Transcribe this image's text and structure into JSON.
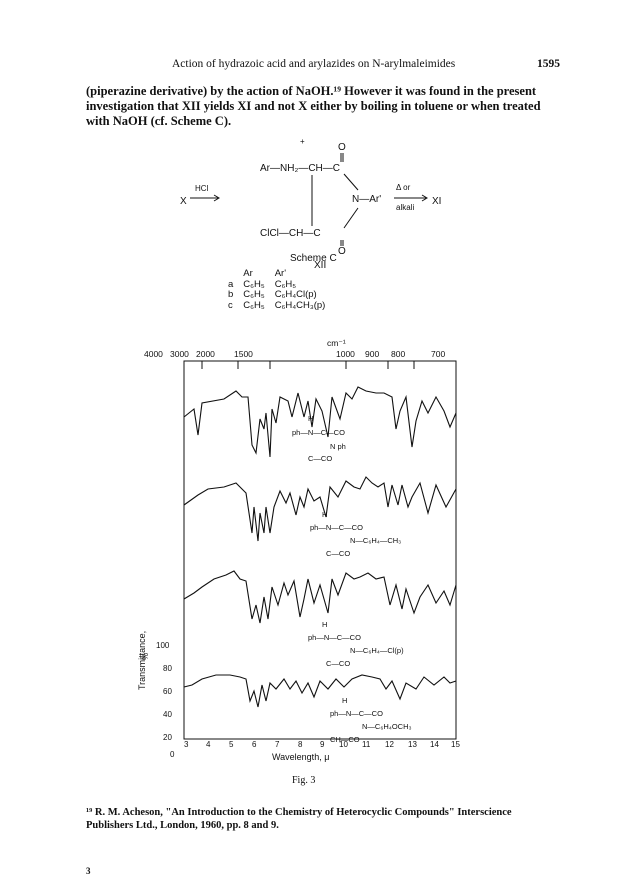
{
  "header": {
    "running_title": "Action of hydrazoic acid and arylazides on N-arylmaleimides",
    "page_number": "1595"
  },
  "paragraph": {
    "lines": [
      "(piperazine derivative) by the action of NaOH.¹⁹ However it was found in the present",
      "investigation that XII yields XI and not X either by boiling in toluene or when treated",
      "with NaOH (cf. Scheme C)."
    ]
  },
  "scheme": {
    "left_compound": "X",
    "left_reagent": "HCl",
    "top_oxygen": "O",
    "top_chain": "Ar—NH₂—CH—C",
    "plus": "+",
    "middle_n": "N—Ar'",
    "right_reagent_top": "Δ or",
    "right_reagent_bottom": "alkali",
    "right_product": "XI",
    "bottom_chain": "ClCl—CH—C",
    "bottom_oxygen": "O",
    "compound_label": "XII",
    "title": "Scheme C"
  },
  "substituents": {
    "header": [
      "",
      "Ar",
      "Ar'"
    ],
    "rows": [
      [
        "a",
        "C₆H₅",
        "C₆H₅"
      ],
      [
        "b",
        "C₆H₅",
        "C₆H₄Cl(p)"
      ],
      [
        "c",
        "C₆H₅",
        "C₆H₄CH₃(p)"
      ]
    ]
  },
  "figure": {
    "wavenumber_unit": "cm⁻¹",
    "wavenumber_ticks": [
      "4000",
      "3000",
      "2000",
      "1500",
      "1000",
      "900",
      "800",
      "700"
    ],
    "y_axis_label": "Transmittance,",
    "y_axis_unit": "%",
    "y_ticks": [
      "100",
      "80",
      "60",
      "40",
      "20",
      "0"
    ],
    "x_ticks": [
      "3",
      "4",
      "5",
      "6",
      "7",
      "8",
      "9",
      "10",
      "11",
      "12",
      "13",
      "14",
      "15"
    ],
    "x_axis_label": "Wavelength,    μ",
    "caption": "Fig. 3",
    "structures": [
      {
        "h": "H",
        "line1": "ph—N—C—CO",
        "line2": "N   ph",
        "line3": "C—CO"
      },
      {
        "h": "H",
        "line1": "ph—N—C—CO",
        "line2": "N—C₆H₄—CH₃",
        "line3": "C—CO"
      },
      {
        "h": "H",
        "line1": "ph—N—C—CO",
        "line2": "N—C₆H₄—Cl(p)",
        "line3": "C—CO"
      },
      {
        "h": "H",
        "line1": "ph—N—C—CO",
        "line2": "N—C₆H₄OCH₃",
        "line3": "CH—CO"
      }
    ]
  },
  "footnote": {
    "lines": [
      "¹⁹ R. M. Acheson, \"An Introduction to the Chemistry of Heterocyclic Compounds\" Interscience",
      "Publishers Ltd., London, 1960, pp. 8 and 9."
    ]
  },
  "page_letter": "3"
}
